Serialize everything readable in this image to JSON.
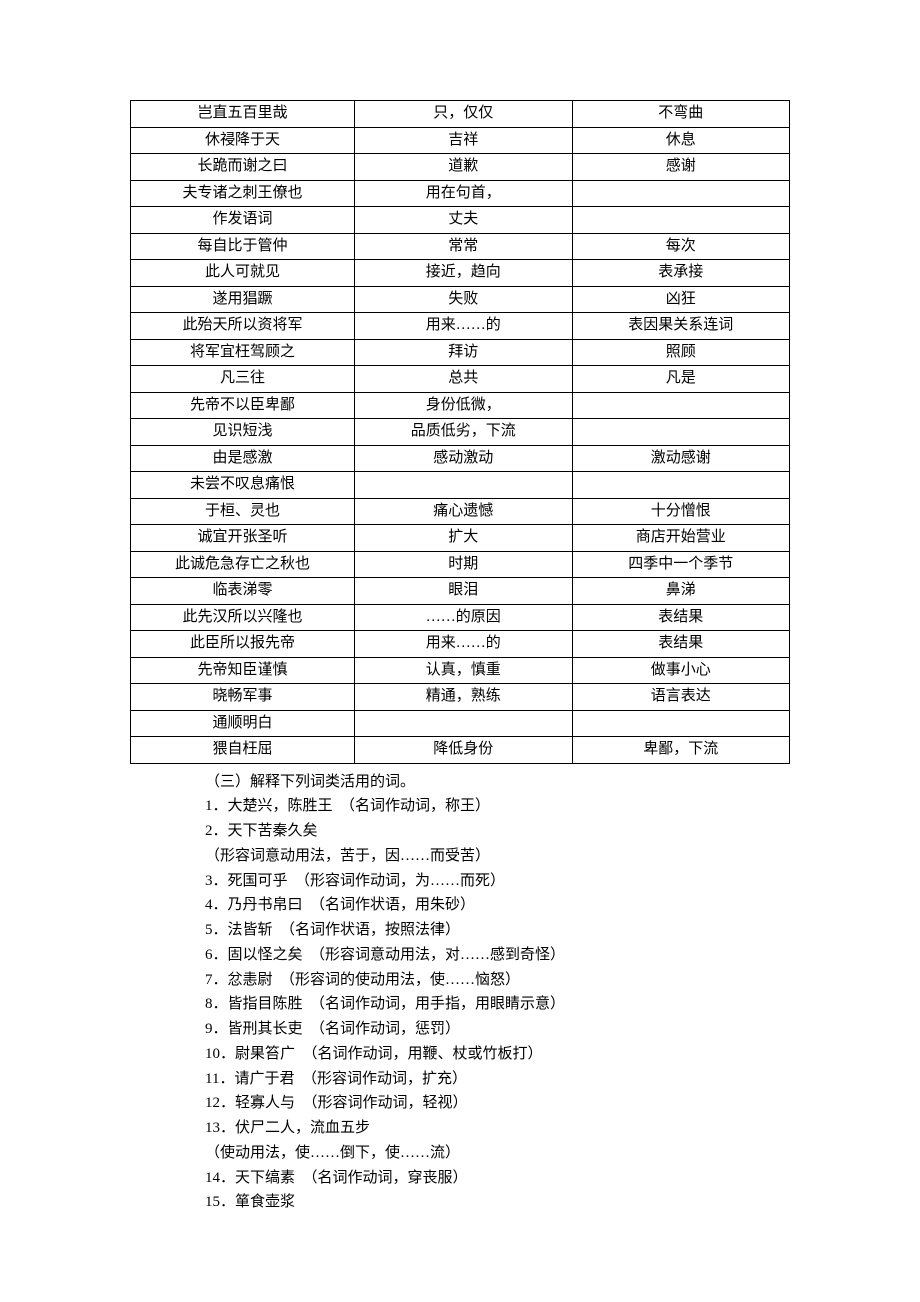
{
  "table": {
    "border_color": "#000000",
    "background_color": "#ffffff",
    "text_color": "#000000",
    "font_size": 15,
    "rows": [
      [
        "岂直五百里哉",
        "只，仅仅",
        "不弯曲"
      ],
      [
        "休祲降于天",
        "吉祥",
        "休息"
      ],
      [
        "长跪而谢之曰",
        "道歉",
        "感谢"
      ],
      [
        "夫专诸之刺王僚也",
        "用在句首，",
        ""
      ],
      [
        "作发语词",
        "丈夫",
        ""
      ],
      [
        "每自比于管仲",
        "常常",
        "每次"
      ],
      [
        "此人可就见",
        "接近，趋向",
        "表承接"
      ],
      [
        "遂用猖蹶",
        "失败",
        "凶狂"
      ],
      [
        "此殆天所以资将军",
        "用来……的",
        "表因果关系连词"
      ],
      [
        "将军宜枉驾顾之",
        "拜访",
        "照顾"
      ],
      [
        "凡三往",
        "总共",
        "凡是"
      ],
      [
        "先帝不以臣卑鄙",
        "身份低微，",
        ""
      ],
      [
        "见识短浅",
        "品质低劣，下流",
        ""
      ],
      [
        "由是感激",
        "感动激动",
        "激动感谢"
      ],
      [
        "未尝不叹息痛恨",
        "",
        ""
      ],
      [
        "于桓、灵也",
        "痛心遗憾",
        "十分憎恨"
      ],
      [
        "诚宜开张圣听",
        "扩大",
        "商店开始营业"
      ],
      [
        "此诚危急存亡之秋也",
        "时期",
        "四季中一个季节"
      ],
      [
        "临表涕零",
        "眼泪",
        "鼻涕"
      ],
      [
        "此先汉所以兴隆也",
        "……的原因",
        "表结果"
      ],
      [
        "此臣所以报先帝",
        "用来……的",
        "表结果"
      ],
      [
        "先帝知臣谨慎",
        "认真，慎重",
        "做事小心"
      ],
      [
        "晓畅军事",
        "精通，熟练",
        "语言表达"
      ],
      [
        "通顺明白",
        "",
        ""
      ],
      [
        "猥自枉屈",
        "降低身份",
        "卑鄙，下流"
      ]
    ]
  },
  "notes": {
    "heading": "（三）解释下列词类活用的词。",
    "items": [
      "1．大楚兴，陈胜王　（名词作动词，称王）",
      "2．天下苦秦久矣",
      "（形容词意动用法，苦于，因……而受苦）",
      "3．死国可乎　（形容词作动词，为……而死）",
      "4．乃丹书帛曰　（名词作状语，用朱砂）",
      "5．法皆斩　（名词作状语，按照法律）",
      "6．固以怪之矣　（形容词意动用法，对……感到奇怪）",
      "7．忿恚尉　（形容词的使动用法，使……恼怒）",
      "8．皆指目陈胜　（名词作动词，用手指，用眼睛示意）",
      "9．皆刑其长吏　（名词作动词，惩罚）",
      "10．尉果笞广　（名词作动词，用鞭、杖或竹板打）",
      "11．请广于君　（形容词作动词，扩充）",
      "12．轻寡人与　（形容词作动词，轻视）",
      "13．伏尸二人，流血五步",
      "（使动用法，使……倒下，使……流）",
      "14．天下缟素　（名词作动词，穿丧服）",
      "15．箪食壶浆"
    ]
  }
}
